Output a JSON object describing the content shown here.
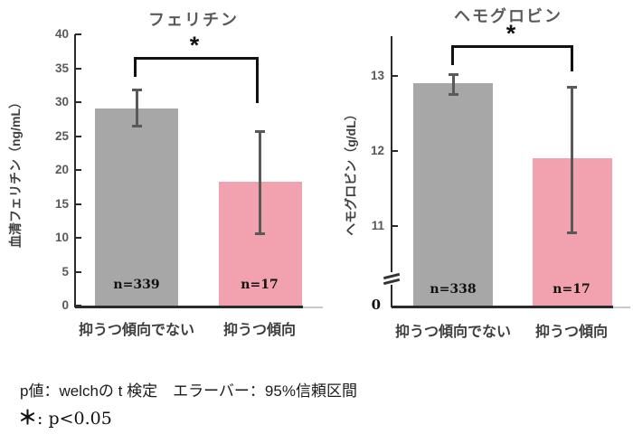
{
  "chart_data": [
    {
      "type": "bar",
      "title": "フェリチン",
      "ylabel": "血清フェリチン（ng/mL）",
      "categories": [
        "抑うつ傾向でない",
        "抑うつ傾向"
      ],
      "values": [
        29.1,
        18.3
      ],
      "ci_low": [
        26.4,
        10.5
      ],
      "ci_high": [
        31.9,
        25.8
      ],
      "n_labels": [
        "n=339",
        "n=17"
      ],
      "bar_colors": [
        "#a7a7a7",
        "#f2a2af"
      ],
      "yticks": [
        40,
        35,
        30,
        25,
        20,
        15,
        10,
        5,
        0
      ],
      "ylim": [
        0,
        40
      ],
      "axis_break": false,
      "grid": false,
      "legend": "none",
      "sig_label": "*"
    },
    {
      "type": "bar",
      "title": "ヘモグロビン",
      "ylabel": "ヘモグロビン（g/dL）",
      "categories": [
        "抑うつ傾向でない",
        "抑うつ傾向"
      ],
      "values": [
        12.9,
        11.9
      ],
      "ci_low": [
        12.75,
        10.9
      ],
      "ci_high": [
        13.03,
        12.85
      ],
      "n_labels": [
        "n=338",
        "n=17"
      ],
      "bar_colors": [
        "#a7a7a7",
        "#f2a2af"
      ],
      "yticks": [
        13,
        12,
        11
      ],
      "zero_label": "0",
      "ylim": [
        10.6,
        13.45
      ],
      "axis_break": true,
      "grid": false,
      "legend": "none",
      "sig_label": "*"
    }
  ],
  "footer": {
    "line1": "p値：welchの t 検定　エラーバー：95%信頼区間",
    "sig_symbol": "＊",
    "sig_text": ": p<0.05"
  },
  "colors": {
    "axis": "#2b2b2b",
    "axis_extension": "#c9c9c9",
    "error_bar": "#595959",
    "bracket": "#111111",
    "bar_gray": "#a7a7a7",
    "bar_pink": "#f2a2af"
  }
}
